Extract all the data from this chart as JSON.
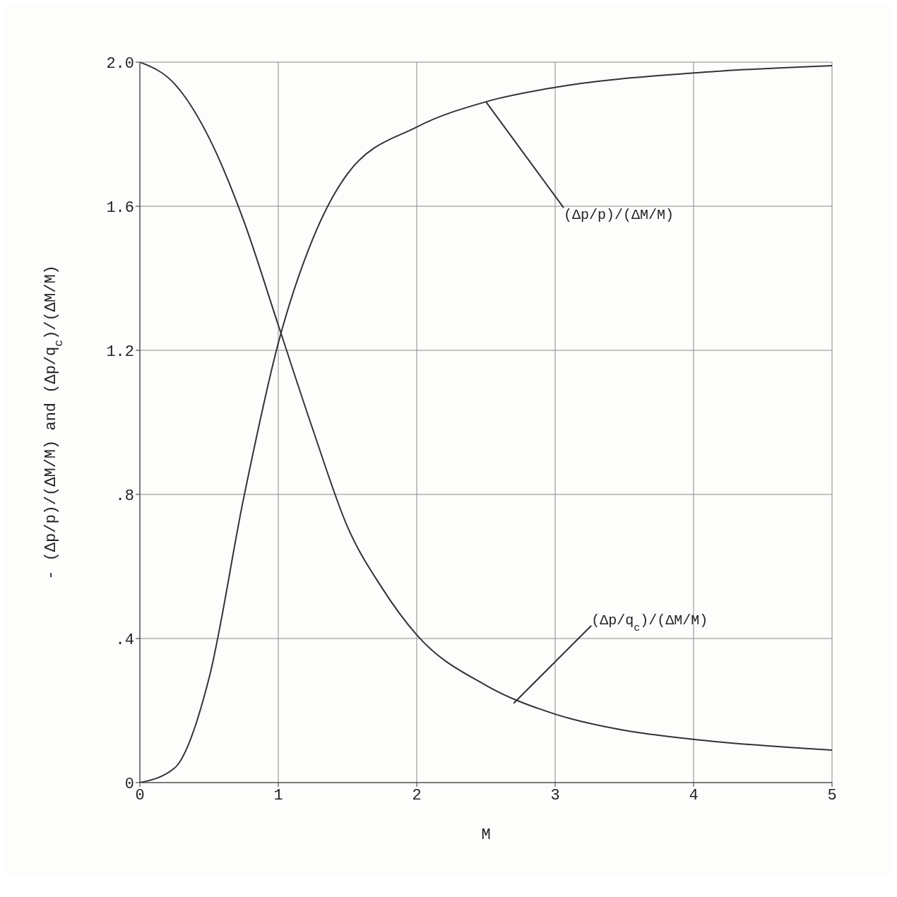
{
  "chart_data": {
    "type": "line",
    "xlabel": "M",
    "ylabel": "- (Δp/p)/(ΔM/M) and (Δp/q$_{c}$)/(ΔM/M)",
    "xlim": [
      0,
      5
    ],
    "xticks": [
      0,
      1,
      2,
      3,
      4,
      5
    ],
    "ylim": [
      0,
      2.0
    ],
    "yticks": [
      {
        "value": 0,
        "label": "0"
      },
      {
        "value": 0.4,
        "label": ".4"
      },
      {
        "value": 0.8,
        "label": ".8"
      },
      {
        "value": 1.2,
        "label": "1.2"
      },
      {
        "value": 1.6,
        "label": "1.6"
      },
      {
        "value": 2.0,
        "label": "2.0"
      }
    ],
    "grid": true,
    "marker": "none",
    "line_style": "solid",
    "series": [
      {
        "color": "#333333",
        "x": [
          0,
          0.25,
          0.5,
          0.75,
          1,
          1.25,
          1.5,
          2,
          2.5,
          3,
          4,
          5
        ],
        "values": [
          0,
          0.04,
          0.29,
          0.79,
          1.22,
          1.51,
          1.69,
          1.82,
          1.89,
          1.93,
          1.97,
          1.99
        ]
      },
      {
        "color": "#333333",
        "x": [
          0,
          0.25,
          0.5,
          0.75,
          1,
          1.25,
          1.5,
          1.75,
          2,
          2.5,
          3,
          3.5,
          4,
          5
        ],
        "values": [
          2.0,
          1.94,
          1.79,
          1.56,
          1.27,
          0.98,
          0.71,
          0.54,
          0.41,
          0.27,
          0.19,
          0.145,
          0.12,
          0.09
        ]
      }
    ],
    "annotations": [
      {
        "text": "(Δp/p)/(ΔM/M)",
        "x": 2.5,
        "y": 1.89
      },
      {
        "text": "(Δp/q$_{c}$)/(ΔM/M)",
        "x": 2.7,
        "y": 0.22
      }
    ]
  }
}
